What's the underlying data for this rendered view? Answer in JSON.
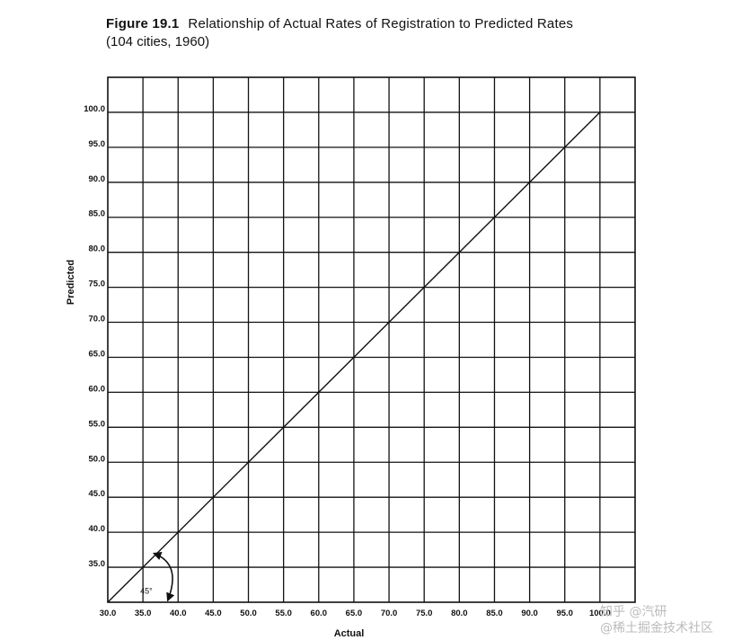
{
  "figure_label": "Figure 19.1",
  "title": "Relationship of Actual Rates of Registration to Predicted Rates",
  "subtitle": "(104 cities, 1960)",
  "chart_data": {
    "type": "line",
    "xlabel": "Actual",
    "ylabel": "Predicted",
    "xlim": [
      30,
      105
    ],
    "ylim": [
      30,
      105
    ],
    "grid": true,
    "x_ticks": [
      "30.0",
      "35.0",
      "40.0",
      "45.0",
      "50.0",
      "55.0",
      "60.0",
      "65.0",
      "70.0",
      "75.0",
      "80.0",
      "85.0",
      "90.0",
      "95.0",
      "100.0"
    ],
    "y_ticks": [
      "35.0",
      "40.0",
      "45.0",
      "50.0",
      "55.0",
      "60.0",
      "65.0",
      "70.0",
      "75.0",
      "80.0",
      "85.0",
      "90.0",
      "95.0",
      "100.0"
    ],
    "series": [
      {
        "x": [
          30,
          100
        ],
        "y": [
          30,
          100
        ]
      }
    ],
    "annotations": [
      {
        "text": "45°",
        "x": 35,
        "y": 32
      }
    ]
  },
  "watermark": {
    "line1": "知乎 @汽研",
    "line2": "@稀土掘金技术社区"
  }
}
